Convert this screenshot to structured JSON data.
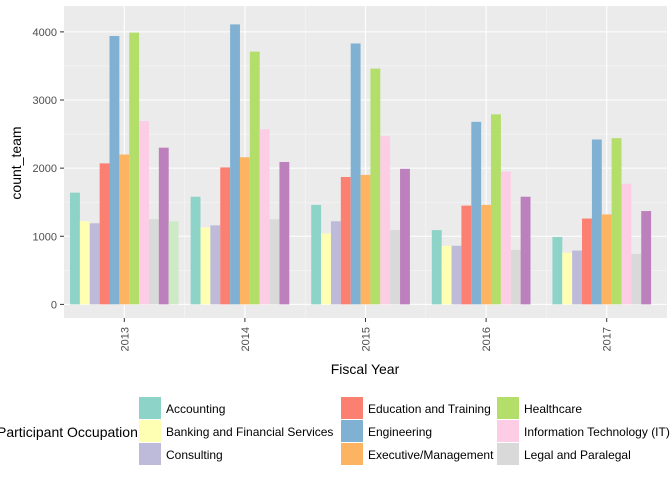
{
  "chart_data": {
    "type": "bar",
    "xlabel": "Fiscal Year",
    "ylabel": "count_team",
    "categories": [
      "2013",
      "2014",
      "2015",
      "2016",
      "2017"
    ],
    "ylim": [
      -200,
      4380
    ],
    "yticks": [
      0,
      1000,
      2000,
      3000,
      4000
    ],
    "grid": true,
    "legend_title": "Participant Occupation",
    "legend_position": "bottom",
    "series": [
      {
        "name": "Accounting",
        "color": "#8DD3C7",
        "values": [
          1640,
          1580,
          1460,
          1090,
          990
        ]
      },
      {
        "name": "Banking and Financial Services",
        "color": "#FFFFB3",
        "values": [
          1220,
          1130,
          1040,
          860,
          760
        ]
      },
      {
        "name": "Consulting",
        "color": "#BEBADA",
        "values": [
          1190,
          1160,
          1220,
          860,
          790
        ]
      },
      {
        "name": "Education and Training",
        "color": "#FB8072",
        "values": [
          2070,
          2010,
          1870,
          1450,
          1260
        ]
      },
      {
        "name": "Engineering",
        "color": "#80B1D3",
        "values": [
          3940,
          4110,
          3830,
          2680,
          2420
        ]
      },
      {
        "name": "Executive/Management",
        "color": "#FDB462",
        "values": [
          2200,
          2160,
          1900,
          1460,
          1320
        ]
      },
      {
        "name": "Healthcare",
        "color": "#B3DE69",
        "values": [
          3990,
          3710,
          3460,
          2790,
          2440
        ]
      },
      {
        "name": "Information Technology (IT)",
        "color": "#FCCDE5",
        "values": [
          2690,
          2570,
          2470,
          1950,
          1770
        ]
      },
      {
        "name": "Legal and Paralegal",
        "color": "#D9D9D9",
        "values": [
          1250,
          1250,
          1090,
          800,
          740
        ]
      },
      {
        "name": "",
        "color": "#BC80BD",
        "values": [
          2300,
          2090,
          1990,
          1580,
          1370
        ]
      },
      {
        "name": "",
        "color": "#CCEBC5",
        "values": [
          1220,
          null,
          null,
          null,
          null
        ]
      }
    ]
  }
}
